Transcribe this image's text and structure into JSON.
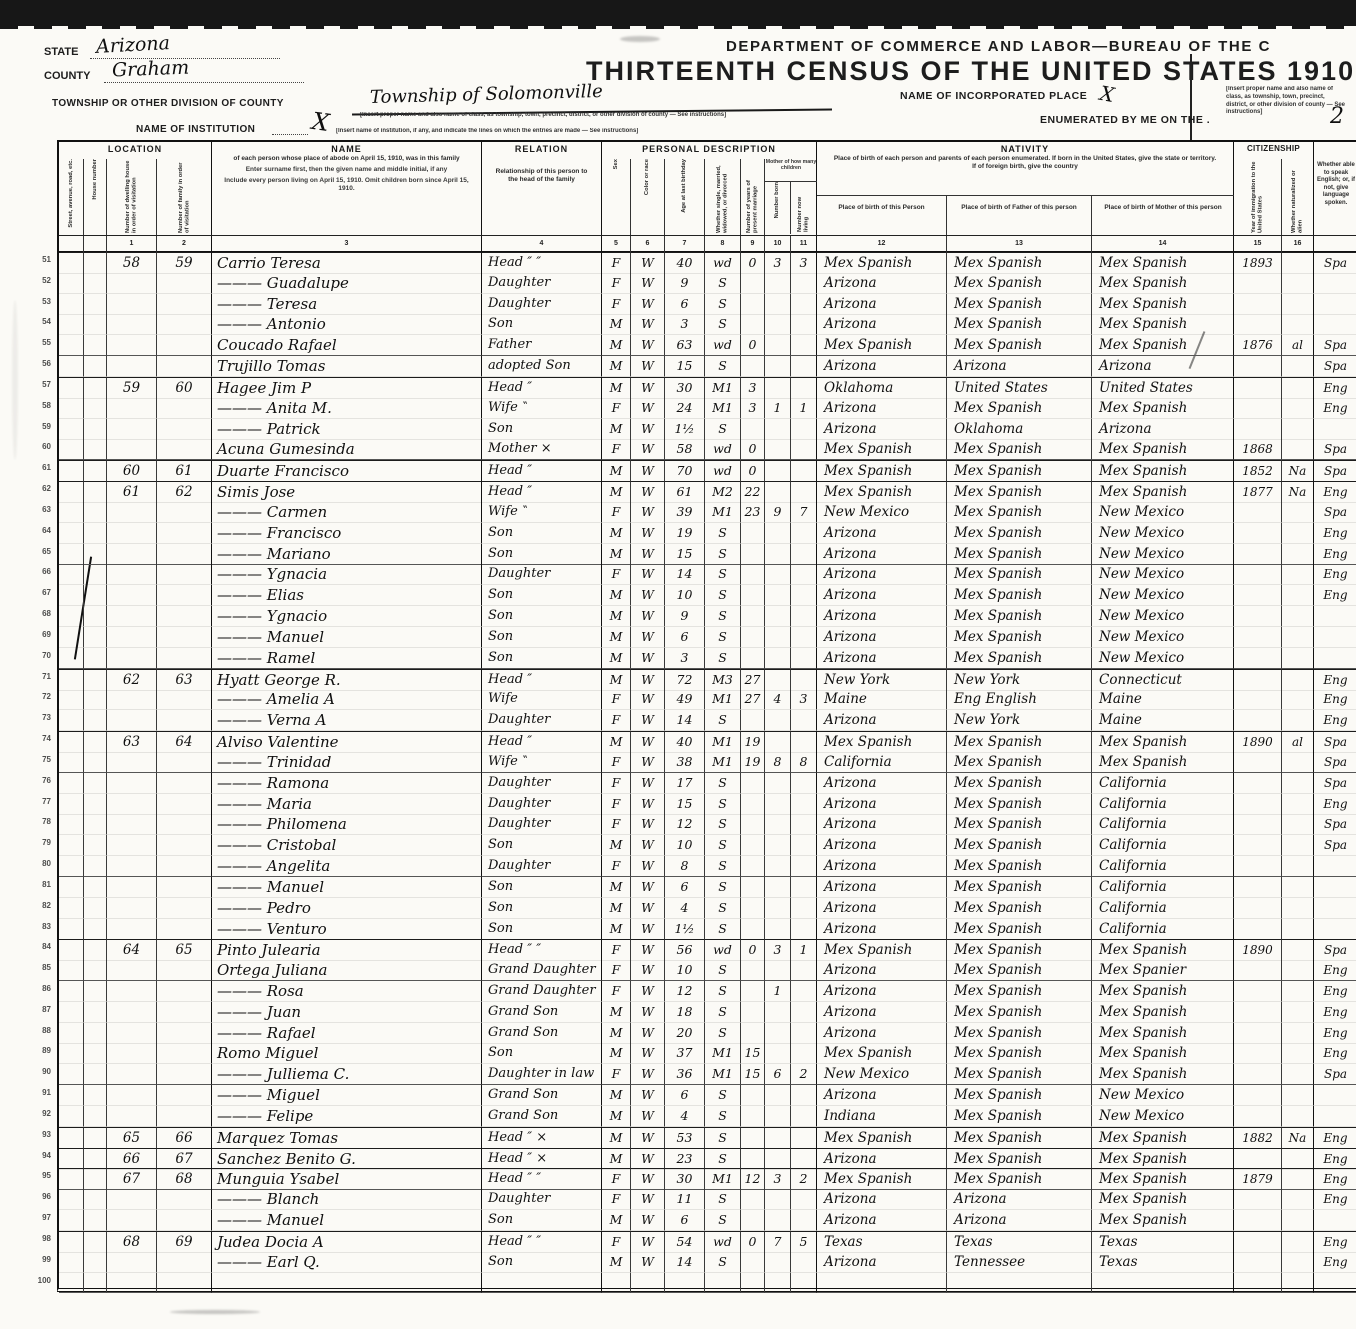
{
  "header": {
    "dept_line": "DEPARTMENT OF COMMERCE AND LABOR—BUREAU OF THE C",
    "title_line": "THIRTEENTH CENSUS OF THE UNITED STATES 1910",
    "state_label": "STATE",
    "state_value": "Arizona",
    "county_label": "COUNTY",
    "county_value": "Graham",
    "township_label": "TOWNSHIP OR OTHER DIVISION OF COUNTY",
    "township_value": "Township of Solomonville",
    "township_note": "[Insert proper name and also name of class, as township, town, precinct, district, or other division of county — See instructions]",
    "institution_label": "NAME OF INSTITUTION",
    "institution_value": "X",
    "institution_note": "[Insert name of institution, if any, and indicate the lines on which the entries are made — See instructions]",
    "incorporated_label": "NAME OF INCORPORATED PLACE",
    "incorporated_value": "X",
    "enumerated_label": "ENUMERATED BY ME ON THE .",
    "enumerated_value": "2"
  },
  "table": {
    "groups": {
      "location": "LOCATION",
      "name": "NAME",
      "relation": "RELATION",
      "personal": "PERSONAL DESCRIPTION",
      "nativity": "NATIVITY",
      "citizenship": "CITIZENSHIP",
      "language": "Whether able to speak English; or, if not, give language spoken."
    },
    "name_note_main": "of each person whose place of abode on April 15, 1910, was in this family",
    "name_note_sub1": "Enter surname first, then the given name and middle initial, if any",
    "name_note_sub2": "Include every person living on April 15, 1910.  Omit children born since April 15, 1910.",
    "relation_note": "Relationship of this person to the head of the family",
    "nativity_note": "Place of birth of each person and parents of each person enumerated.  If born in the United States, give the state or territory.  If of foreign birth, give the country",
    "nat_col1": "Place of birth of this Person",
    "nat_col2": "Place of birth of Father of this person",
    "nat_col3": "Place of birth of Mother of this person",
    "loc_v1": "Street, avenue, road, etc.",
    "loc_v2": "House number",
    "loc_v3": "Number of dwelling house in order of visitation",
    "loc_v4": "Number of family in order of visitation",
    "pv_sex": "Sex",
    "pv_color": "Color or race",
    "pv_age": "Age at last birthday",
    "pv_marital": "Whether single, married, widowed, or divorced",
    "pv_years": "Number of years of present marriage",
    "mother_label": "Mother of how many children",
    "mother_born": "Number born",
    "mother_living": "Number now living",
    "cit_year": "Year of immigration to the United States",
    "cit_nat": "Whether naturalized or alien",
    "col_numbers": [
      "",
      "",
      "1",
      "2",
      "3",
      "4",
      "5",
      "6",
      "7",
      "8",
      "9",
      "10",
      "11",
      "12",
      "13",
      "14",
      "15",
      "16",
      ""
    ],
    "family_start_lines": [
      51,
      57,
      61,
      62,
      71,
      74,
      84,
      93,
      94,
      95,
      98
    ],
    "columns": [
      "line",
      "dwelling",
      "family",
      "name",
      "relation",
      "sex",
      "color",
      "age",
      "marital",
      "years_married",
      "children_born",
      "children_living",
      "birthplace_person",
      "birthplace_father",
      "birthplace_mother",
      "year_immigration",
      "naturalized",
      "language"
    ],
    "rows": [
      [
        "51",
        "58",
        "59",
        "Carrio Teresa",
        "Head ″ ″",
        "F",
        "W",
        "40",
        "wd",
        "0",
        "3",
        "3",
        "Mex Spanish",
        "Mex Spanish",
        "Mex Spanish",
        "1893",
        "",
        "Spa"
      ],
      [
        "52",
        "",
        "",
        "——— Guadalupe",
        "Daughter",
        "F",
        "W",
        "9",
        "S",
        "",
        "",
        "",
        "Arizona",
        "Mex Spanish",
        "Mex Spanish",
        "",
        "",
        ""
      ],
      [
        "53",
        "",
        "",
        "——— Teresa",
        "Daughter",
        "F",
        "W",
        "6",
        "S",
        "",
        "",
        "",
        "Arizona",
        "Mex Spanish",
        "Mex Spanish",
        "",
        "",
        ""
      ],
      [
        "54",
        "",
        "",
        "——— Antonio",
        "Son",
        "M",
        "W",
        "3",
        "S",
        "",
        "",
        "",
        "Arizona",
        "Mex Spanish",
        "Mex Spanish",
        "",
        "",
        ""
      ],
      [
        "55",
        "",
        "",
        "Coucado Rafael",
        "Father",
        "M",
        "W",
        "63",
        "wd",
        "0",
        "",
        "",
        "Mex Spanish",
        "Mex Spanish",
        "Mex Spanish",
        "1876",
        "al",
        "Spa"
      ],
      [
        "56",
        "",
        "",
        "Trujillo Tomas",
        "adopted Son",
        "M",
        "W",
        "15",
        "S",
        "",
        "",
        "",
        "Arizona",
        "Arizona",
        "Arizona",
        "",
        "",
        "Spa"
      ],
      [
        "57",
        "59",
        "60",
        "Hagee Jim P",
        "Head ″",
        "M",
        "W",
        "30",
        "M1",
        "3",
        "",
        "",
        "Oklahoma",
        "United States",
        "United States",
        "",
        "",
        "Eng"
      ],
      [
        "58",
        "",
        "",
        "——— Anita M.",
        "Wife ‶",
        "F",
        "W",
        "24",
        "M1",
        "3",
        "1",
        "1",
        "Arizona",
        "Mex Spanish",
        "Mex Spanish",
        "",
        "",
        "Eng"
      ],
      [
        "59",
        "",
        "",
        "——— Patrick",
        "Son",
        "M",
        "W",
        "1½",
        "S",
        "",
        "",
        "",
        "Arizona",
        "Oklahoma",
        "Arizona",
        "",
        "",
        ""
      ],
      [
        "60",
        "",
        "",
        "Acuna Gumesinda",
        "Mother ×",
        "F",
        "W",
        "58",
        "wd",
        "0",
        "",
        "",
        "Mex Spanish",
        "Mex Spanish",
        "Mex Spanish",
        "1868",
        "",
        "Spa"
      ],
      [
        "61",
        "60",
        "61",
        "Duarte Francisco",
        "Head ″",
        "M",
        "W",
        "70",
        "wd",
        "0",
        "",
        "",
        "Mex Spanish",
        "Mex Spanish",
        "Mex Spanish",
        "1852",
        "Na",
        "Spa"
      ],
      [
        "62",
        "61",
        "62",
        "Simis Jose",
        "Head ″",
        "M",
        "W",
        "61",
        "M2",
        "22",
        "",
        "",
        "Mex Spanish",
        "Mex Spanish",
        "Mex Spanish",
        "1877",
        "Na",
        "Eng"
      ],
      [
        "63",
        "",
        "",
        "——— Carmen",
        "Wife ‶",
        "F",
        "W",
        "39",
        "M1",
        "23",
        "9",
        "7",
        "New Mexico",
        "Mex Spanish",
        "New Mexico",
        "",
        "",
        "Spa"
      ],
      [
        "64",
        "",
        "",
        "——— Francisco",
        "Son",
        "M",
        "W",
        "19",
        "S",
        "",
        "",
        "",
        "Arizona",
        "Mex Spanish",
        "New Mexico",
        "",
        "",
        "Eng"
      ],
      [
        "65",
        "",
        "",
        "——— Mariano",
        "Son",
        "M",
        "W",
        "15",
        "S",
        "",
        "",
        "",
        "Arizona",
        "Mex Spanish",
        "New Mexico",
        "",
        "",
        "Eng"
      ],
      [
        "66",
        "",
        "",
        "——— Ygnacia",
        "Daughter",
        "F",
        "W",
        "14",
        "S",
        "",
        "",
        "",
        "Arizona",
        "Mex Spanish",
        "New Mexico",
        "",
        "",
        "Eng"
      ],
      [
        "67",
        "",
        "",
        "——— Elias",
        "Son",
        "M",
        "W",
        "10",
        "S",
        "",
        "",
        "",
        "Arizona",
        "Mex Spanish",
        "New Mexico",
        "",
        "",
        "Eng"
      ],
      [
        "68",
        "",
        "",
        "——— Ygnacio",
        "Son",
        "M",
        "W",
        "9",
        "S",
        "",
        "",
        "",
        "Arizona",
        "Mex Spanish",
        "New Mexico",
        "",
        "",
        ""
      ],
      [
        "69",
        "",
        "",
        "——— Manuel",
        "Son",
        "M",
        "W",
        "6",
        "S",
        "",
        "",
        "",
        "Arizona",
        "Mex Spanish",
        "New Mexico",
        "",
        "",
        ""
      ],
      [
        "70",
        "",
        "",
        "——— Ramel",
        "Son",
        "M",
        "W",
        "3",
        "S",
        "",
        "",
        "",
        "Arizona",
        "Mex Spanish",
        "New Mexico",
        "",
        "",
        ""
      ],
      [
        "71",
        "62",
        "63",
        "Hyatt George R.",
        "Head ″",
        "M",
        "W",
        "72",
        "M3",
        "27",
        "",
        "",
        "New York",
        "New York",
        "Connecticut",
        "",
        "",
        "Eng"
      ],
      [
        "72",
        "",
        "",
        "——— Amelia A",
        "Wife",
        "F",
        "W",
        "49",
        "M1",
        "27",
        "4",
        "3",
        "Maine",
        "Eng English",
        "Maine",
        "",
        "",
        "Eng"
      ],
      [
        "73",
        "",
        "",
        "——— Verna A",
        "Daughter",
        "F",
        "W",
        "14",
        "S",
        "",
        "",
        "",
        "Arizona",
        "New York",
        "Maine",
        "",
        "",
        "Eng"
      ],
      [
        "74",
        "63",
        "64",
        "Alviso Valentine",
        "Head ″",
        "M",
        "W",
        "40",
        "M1",
        "19",
        "",
        "",
        "Mex Spanish",
        "Mex Spanish",
        "Mex Spanish",
        "1890",
        "al",
        "Spa"
      ],
      [
        "75",
        "",
        "",
        "——— Trinidad",
        "Wife ‶",
        "F",
        "W",
        "38",
        "M1",
        "19",
        "8",
        "8",
        "California",
        "Mex Spanish",
        "Mex Spanish",
        "",
        "",
        "Spa"
      ],
      [
        "76",
        "",
        "",
        "——— Ramona",
        "Daughter",
        "F",
        "W",
        "17",
        "S",
        "",
        "",
        "",
        "Arizona",
        "Mex Spanish",
        "California",
        "",
        "",
        "Spa"
      ],
      [
        "77",
        "",
        "",
        "——— Maria",
        "Daughter",
        "F",
        "W",
        "15",
        "S",
        "",
        "",
        "",
        "Arizona",
        "Mex Spanish",
        "California",
        "",
        "",
        "Eng"
      ],
      [
        "78",
        "",
        "",
        "——— Philomena",
        "Daughter",
        "F",
        "W",
        "12",
        "S",
        "",
        "",
        "",
        "Arizona",
        "Mex Spanish",
        "California",
        "",
        "",
        "Spa"
      ],
      [
        "79",
        "",
        "",
        "——— Cristobal",
        "Son",
        "M",
        "W",
        "10",
        "S",
        "",
        "",
        "",
        "Arizona",
        "Mex Spanish",
        "California",
        "",
        "",
        "Spa"
      ],
      [
        "80",
        "",
        "",
        "——— Angelita",
        "Daughter",
        "F",
        "W",
        "8",
        "S",
        "",
        "",
        "",
        "Arizona",
        "Mex Spanish",
        "California",
        "",
        "",
        ""
      ],
      [
        "81",
        "",
        "",
        "——— Manuel",
        "Son",
        "M",
        "W",
        "6",
        "S",
        "",
        "",
        "",
        "Arizona",
        "Mex Spanish",
        "California",
        "",
        "",
        ""
      ],
      [
        "82",
        "",
        "",
        "——— Pedro",
        "Son",
        "M",
        "W",
        "4",
        "S",
        "",
        "",
        "",
        "Arizona",
        "Mex Spanish",
        "California",
        "",
        "",
        ""
      ],
      [
        "83",
        "",
        "",
        "——— Venturo",
        "Son",
        "M",
        "W",
        "1½",
        "S",
        "",
        "",
        "",
        "Arizona",
        "Mex Spanish",
        "California",
        "",
        "",
        ""
      ],
      [
        "84",
        "64",
        "65",
        "Pinto Julearia",
        "Head ″ ″",
        "F",
        "W",
        "56",
        "wd",
        "0",
        "3",
        "1",
        "Mex Spanish",
        "Mex Spanish",
        "Mex Spanish",
        "1890",
        "",
        "Spa"
      ],
      [
        "85",
        "",
        "",
        "Ortega Juliana",
        "Grand Daughter",
        "F",
        "W",
        "10",
        "S",
        "",
        "",
        "",
        "Arizona",
        "Mex Spanish",
        "Mex Spanier",
        "",
        "",
        "Eng"
      ],
      [
        "86",
        "",
        "",
        "——— Rosa",
        "Grand Daughter",
        "F",
        "W",
        "12",
        "S",
        "",
        "1",
        "",
        "Arizona",
        "Mex Spanish",
        "Mex Spanish",
        "",
        "",
        "Eng"
      ],
      [
        "87",
        "",
        "",
        "——— Juan",
        "Grand Son",
        "M",
        "W",
        "18",
        "S",
        "",
        "",
        "",
        "Arizona",
        "Mex Spanish",
        "Mex Spanish",
        "",
        "",
        "Eng"
      ],
      [
        "88",
        "",
        "",
        "——— Rafael",
        "Grand Son",
        "M",
        "W",
        "20",
        "S",
        "",
        "",
        "",
        "Arizona",
        "Mex Spanish",
        "Mex Spanish",
        "",
        "",
        "Eng"
      ],
      [
        "89",
        "",
        "",
        "Romo Miguel",
        "Son",
        "M",
        "W",
        "37",
        "M1",
        "15",
        "",
        "",
        "Mex Spanish",
        "Mex Spanish",
        "Mex Spanish",
        "",
        "",
        "Eng"
      ],
      [
        "90",
        "",
        "",
        "——— Julliema C.",
        "Daughter in law",
        "F",
        "W",
        "36",
        "M1",
        "15",
        "6",
        "2",
        "New Mexico",
        "Mex Spanish",
        "Mex Spanish",
        "",
        "",
        "Spa"
      ],
      [
        "91",
        "",
        "",
        "——— Miguel",
        "Grand Son",
        "M",
        "W",
        "6",
        "S",
        "",
        "",
        "",
        "Arizona",
        "Mex Spanish",
        "New Mexico",
        "",
        "",
        ""
      ],
      [
        "92",
        "",
        "",
        "——— Felipe",
        "Grand Son",
        "M",
        "W",
        "4",
        "S",
        "",
        "",
        "",
        "Indiana",
        "Mex Spanish",
        "New Mexico",
        "",
        "",
        ""
      ],
      [
        "93",
        "65",
        "66",
        "Marquez Tomas",
        "Head ″ ×",
        "M",
        "W",
        "53",
        "S",
        "",
        "",
        "",
        "Mex Spanish",
        "Mex Spanish",
        "Mex Spanish",
        "1882",
        "Na",
        "Eng"
      ],
      [
        "94",
        "66",
        "67",
        "Sanchez Benito G.",
        "Head ″ ×",
        "M",
        "W",
        "23",
        "S",
        "",
        "",
        "",
        "Arizona",
        "Mex Spanish",
        "Mex Spanish",
        "",
        "",
        "Eng"
      ],
      [
        "95",
        "67",
        "68",
        "Munguia Ysabel",
        "Head ″ ″",
        "F",
        "W",
        "30",
        "M1",
        "12",
        "3",
        "2",
        "Mex Spanish",
        "Mex Spanish",
        "Mex Spanish",
        "1879",
        "",
        "Eng"
      ],
      [
        "96",
        "",
        "",
        "——— Blanch",
        "Daughter",
        "F",
        "W",
        "11",
        "S",
        "",
        "",
        "",
        "Arizona",
        "Arizona",
        "Mex Spanish",
        "",
        "",
        "Eng"
      ],
      [
        "97",
        "",
        "",
        "——— Manuel",
        "Son",
        "M",
        "W",
        "6",
        "S",
        "",
        "",
        "",
        "Arizona",
        "Arizona",
        "Mex Spanish",
        "",
        "",
        ""
      ],
      [
        "98",
        "68",
        "69",
        "Judea Docia A",
        "Head ″ ″",
        "F",
        "W",
        "54",
        "wd",
        "0",
        "7",
        "5",
        "Texas",
        "Texas",
        "Texas",
        "",
        "",
        "Eng"
      ],
      [
        "99",
        "",
        "",
        "——— Earl Q.",
        "Son",
        "M",
        "W",
        "14",
        "S",
        "",
        "",
        "",
        "Arizona",
        "Tennessee",
        "Texas",
        "",
        "",
        "Eng"
      ],
      [
        "100",
        "",
        "",
        "",
        "",
        "",
        "",
        "",
        "",
        "",
        "",
        "",
        "",
        "",
        "",
        "",
        "",
        ""
      ]
    ]
  }
}
